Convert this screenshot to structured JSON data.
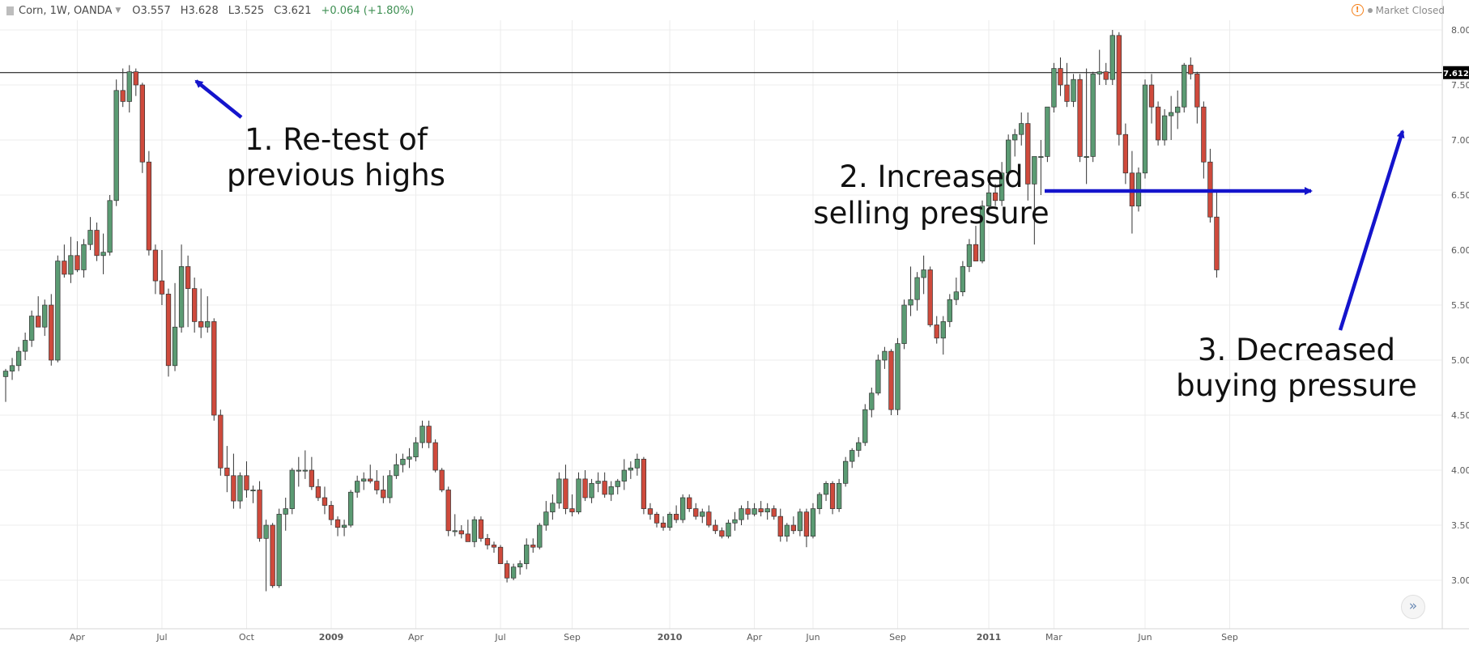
{
  "header": {
    "symbol": "Corn, 1W, OANDA",
    "open": "O3.557",
    "high": "H3.628",
    "low": "L3.525",
    "close": "C3.621",
    "change": "+0.064 (+1.80%)"
  },
  "status": {
    "label": "Market Closed"
  },
  "colors": {
    "up": "#5b9b73",
    "down": "#cf4a3c",
    "arrow": "#1414cc",
    "grid": "#ececec",
    "price_line": "#000000"
  },
  "chart_data": {
    "type": "candlestick",
    "timeframe": "weekly",
    "y_range": [
      2.75,
      8.2
    ],
    "y_ticks": [
      "8.000",
      "7.500",
      "7.000",
      "6.500",
      "6.000",
      "5.500",
      "5.000",
      "4.500",
      "4.000",
      "3.500",
      "3.000"
    ],
    "x_ticks": [
      "Apr",
      "Jul",
      "Oct",
      "2009",
      "Apr",
      "Jul",
      "Sep",
      "2010",
      "Apr",
      "Jun",
      "Sep",
      "2011",
      "Mar",
      "Jun",
      "Sep"
    ],
    "x_tick_weeks": [
      11,
      24,
      37,
      50,
      63,
      76,
      87,
      102,
      115,
      124,
      137,
      151,
      161,
      175,
      188
    ],
    "bold_x_ticks": [
      "2009",
      "2010",
      "2011"
    ],
    "price_line": {
      "value": 7.612,
      "label": "7.612"
    },
    "candles": [
      [
        4.85,
        4.92,
        4.62,
        4.9
      ],
      [
        4.9,
        5.02,
        4.82,
        4.95
      ],
      [
        4.95,
        5.12,
        4.9,
        5.08
      ],
      [
        5.08,
        5.25,
        5.0,
        5.18
      ],
      [
        5.18,
        5.45,
        5.12,
        5.4
      ],
      [
        5.4,
        5.58,
        5.3,
        5.3
      ],
      [
        5.3,
        5.55,
        5.22,
        5.5
      ],
      [
        5.5,
        5.6,
        4.95,
        5.0
      ],
      [
        5.0,
        5.95,
        4.98,
        5.9
      ],
      [
        5.9,
        6.05,
        5.75,
        5.78
      ],
      [
        5.78,
        6.12,
        5.7,
        5.95
      ],
      [
        5.95,
        6.08,
        5.8,
        5.82
      ],
      [
        5.82,
        6.1,
        5.75,
        6.05
      ],
      [
        6.05,
        6.3,
        6.0,
        6.18
      ],
      [
        6.18,
        6.25,
        5.9,
        5.95
      ],
      [
        5.95,
        6.15,
        5.78,
        5.98
      ],
      [
        5.98,
        6.5,
        5.95,
        6.45
      ],
      [
        6.45,
        7.55,
        6.4,
        7.45
      ],
      [
        7.45,
        7.65,
        7.3,
        7.35
      ],
      [
        7.35,
        7.68,
        7.25,
        7.62
      ],
      [
        7.62,
        7.65,
        7.4,
        7.5
      ],
      [
        7.5,
        7.52,
        6.7,
        6.8
      ],
      [
        6.8,
        6.9,
        5.95,
        6.0
      ],
      [
        6.0,
        6.05,
        5.6,
        5.72
      ],
      [
        5.72,
        6.0,
        5.5,
        5.6
      ],
      [
        5.6,
        5.65,
        4.85,
        4.95
      ],
      [
        4.95,
        5.7,
        4.9,
        5.3
      ],
      [
        5.3,
        6.05,
        5.25,
        5.85
      ],
      [
        5.85,
        5.95,
        5.3,
        5.65
      ],
      [
        5.65,
        5.75,
        5.25,
        5.35
      ],
      [
        5.35,
        5.65,
        5.2,
        5.3
      ],
      [
        5.3,
        5.58,
        5.25,
        5.35
      ],
      [
        5.35,
        5.38,
        4.45,
        4.5
      ],
      [
        4.5,
        4.55,
        3.95,
        4.02
      ],
      [
        4.02,
        4.22,
        3.8,
        3.95
      ],
      [
        3.95,
        4.15,
        3.65,
        3.72
      ],
      [
        3.72,
        3.98,
        3.65,
        3.95
      ],
      [
        3.95,
        4.08,
        3.75,
        3.82
      ],
      [
        3.82,
        3.86,
        3.7,
        3.82
      ],
      [
        3.82,
        3.9,
        3.35,
        3.38
      ],
      [
        3.38,
        3.55,
        2.9,
        3.5
      ],
      [
        3.5,
        3.52,
        2.93,
        2.95
      ],
      [
        2.95,
        3.65,
        2.93,
        3.6
      ],
      [
        3.6,
        3.75,
        3.45,
        3.65
      ],
      [
        3.65,
        4.02,
        3.6,
        4.0
      ],
      [
        4.0,
        4.12,
        3.85,
        4.0
      ],
      [
        4.0,
        4.18,
        3.92,
        4.0
      ],
      [
        4.0,
        4.12,
        3.82,
        3.85
      ],
      [
        3.85,
        3.92,
        3.72,
        3.75
      ],
      [
        3.75,
        3.85,
        3.6,
        3.68
      ],
      [
        3.68,
        3.72,
        3.5,
        3.55
      ],
      [
        3.55,
        3.58,
        3.4,
        3.48
      ],
      [
        3.48,
        3.55,
        3.4,
        3.5
      ],
      [
        3.5,
        3.82,
        3.48,
        3.8
      ],
      [
        3.8,
        3.95,
        3.75,
        3.9
      ],
      [
        3.9,
        3.98,
        3.82,
        3.92
      ],
      [
        3.92,
        4.05,
        3.88,
        3.9
      ],
      [
        3.9,
        4.0,
        3.78,
        3.82
      ],
      [
        3.82,
        3.95,
        3.7,
        3.75
      ],
      [
        3.75,
        4.0,
        3.7,
        3.95
      ],
      [
        3.95,
        4.15,
        3.92,
        4.05
      ],
      [
        4.05,
        4.15,
        3.98,
        4.1
      ],
      [
        4.1,
        4.2,
        4.02,
        4.12
      ],
      [
        4.12,
        4.3,
        4.08,
        4.25
      ],
      [
        4.25,
        4.45,
        4.2,
        4.4
      ],
      [
        4.4,
        4.45,
        4.2,
        4.25
      ],
      [
        4.25,
        4.28,
        3.98,
        4.0
      ],
      [
        4.0,
        4.02,
        3.8,
        3.82
      ],
      [
        3.82,
        3.85,
        3.4,
        3.45
      ],
      [
        3.45,
        3.6,
        3.4,
        3.45
      ],
      [
        3.45,
        3.5,
        3.38,
        3.42
      ],
      [
        3.42,
        3.55,
        3.35,
        3.35
      ],
      [
        3.35,
        3.58,
        3.3,
        3.55
      ],
      [
        3.55,
        3.58,
        3.35,
        3.38
      ],
      [
        3.38,
        3.42,
        3.28,
        3.32
      ],
      [
        3.32,
        3.35,
        3.25,
        3.3
      ],
      [
        3.3,
        3.32,
        3.15,
        3.15
      ],
      [
        3.15,
        3.18,
        2.98,
        3.02
      ],
      [
        3.02,
        3.15,
        3.0,
        3.12
      ],
      [
        3.12,
        3.18,
        3.05,
        3.15
      ],
      [
        3.15,
        3.38,
        3.1,
        3.32
      ],
      [
        3.32,
        3.38,
        3.25,
        3.3
      ],
      [
        3.3,
        3.52,
        3.28,
        3.5
      ],
      [
        3.5,
        3.72,
        3.45,
        3.62
      ],
      [
        3.62,
        3.78,
        3.55,
        3.7
      ],
      [
        3.7,
        3.98,
        3.65,
        3.92
      ],
      [
        3.92,
        4.05,
        3.6,
        3.65
      ],
      [
        3.65,
        3.78,
        3.58,
        3.62
      ],
      [
        3.62,
        3.98,
        3.6,
        3.92
      ],
      [
        3.92,
        4.0,
        3.72,
        3.75
      ],
      [
        3.75,
        3.92,
        3.7,
        3.88
      ],
      [
        3.88,
        3.98,
        3.8,
        3.9
      ],
      [
        3.9,
        3.98,
        3.75,
        3.78
      ],
      [
        3.78,
        3.9,
        3.72,
        3.85
      ],
      [
        3.85,
        3.92,
        3.78,
        3.9
      ],
      [
        3.9,
        4.1,
        3.82,
        4.0
      ],
      [
        4.0,
        4.08,
        3.92,
        4.02
      ],
      [
        4.02,
        4.15,
        3.95,
        4.1
      ],
      [
        4.1,
        4.12,
        3.6,
        3.65
      ],
      [
        3.65,
        3.7,
        3.55,
        3.6
      ],
      [
        3.6,
        3.62,
        3.48,
        3.52
      ],
      [
        3.52,
        3.58,
        3.45,
        3.48
      ],
      [
        3.48,
        3.62,
        3.45,
        3.6
      ],
      [
        3.6,
        3.68,
        3.52,
        3.55
      ],
      [
        3.55,
        3.78,
        3.52,
        3.75
      ],
      [
        3.75,
        3.78,
        3.62,
        3.65
      ],
      [
        3.65,
        3.7,
        3.55,
        3.58
      ],
      [
        3.58,
        3.65,
        3.52,
        3.62
      ],
      [
        3.62,
        3.68,
        3.48,
        3.5
      ],
      [
        3.5,
        3.55,
        3.42,
        3.45
      ],
      [
        3.45,
        3.48,
        3.38,
        3.4
      ],
      [
        3.4,
        3.55,
        3.38,
        3.52
      ],
      [
        3.52,
        3.62,
        3.45,
        3.55
      ],
      [
        3.55,
        3.68,
        3.5,
        3.65
      ],
      [
        3.65,
        3.72,
        3.55,
        3.6
      ],
      [
        3.6,
        3.7,
        3.58,
        3.65
      ],
      [
        3.65,
        3.72,
        3.58,
        3.62
      ],
      [
        3.62,
        3.7,
        3.55,
        3.65
      ],
      [
        3.65,
        3.68,
        3.55,
        3.58
      ],
      [
        3.58,
        3.65,
        3.35,
        3.4
      ],
      [
        3.4,
        3.52,
        3.35,
        3.5
      ],
      [
        3.5,
        3.58,
        3.42,
        3.45
      ],
      [
        3.45,
        3.65,
        3.4,
        3.62
      ],
      [
        3.62,
        3.65,
        3.3,
        3.4
      ],
      [
        3.4,
        3.7,
        3.38,
        3.65
      ],
      [
        3.65,
        3.8,
        3.6,
        3.78
      ],
      [
        3.78,
        3.9,
        3.72,
        3.88
      ],
      [
        3.88,
        3.9,
        3.6,
        3.65
      ],
      [
        3.65,
        3.92,
        3.62,
        3.88
      ],
      [
        3.88,
        4.12,
        3.85,
        4.08
      ],
      [
        4.08,
        4.2,
        4.02,
        4.18
      ],
      [
        4.18,
        4.3,
        4.12,
        4.25
      ],
      [
        4.25,
        4.6,
        4.22,
        4.55
      ],
      [
        4.55,
        4.75,
        4.48,
        4.7
      ],
      [
        4.7,
        5.05,
        4.68,
        5.0
      ],
      [
        5.0,
        5.12,
        4.92,
        5.08
      ],
      [
        5.08,
        5.1,
        4.5,
        4.55
      ],
      [
        4.55,
        5.2,
        4.5,
        5.15
      ],
      [
        5.15,
        5.55,
        5.1,
        5.5
      ],
      [
        5.5,
        5.85,
        5.4,
        5.55
      ],
      [
        5.55,
        5.8,
        5.45,
        5.75
      ],
      [
        5.75,
        5.95,
        5.6,
        5.82
      ],
      [
        5.82,
        5.85,
        5.3,
        5.32
      ],
      [
        5.32,
        5.4,
        5.15,
        5.2
      ],
      [
        5.2,
        5.4,
        5.05,
        5.35
      ],
      [
        5.35,
        5.6,
        5.3,
        5.55
      ],
      [
        5.55,
        5.75,
        5.5,
        5.62
      ],
      [
        5.62,
        5.9,
        5.58,
        5.85
      ],
      [
        5.85,
        6.1,
        5.8,
        6.05
      ],
      [
        6.05,
        6.22,
        5.9,
        5.9
      ],
      [
        5.9,
        6.45,
        5.88,
        6.4
      ],
      [
        6.4,
        6.6,
        6.35,
        6.52
      ],
      [
        6.52,
        6.6,
        6.4,
        6.45
      ],
      [
        6.45,
        6.8,
        6.4,
        6.7
      ],
      [
        6.7,
        7.05,
        6.65,
        7.0
      ],
      [
        7.0,
        7.1,
        6.85,
        7.05
      ],
      [
        7.05,
        7.25,
        6.95,
        7.15
      ],
      [
        7.15,
        7.25,
        6.45,
        6.6
      ],
      [
        6.6,
        6.8,
        6.05,
        6.85
      ],
      [
        6.85,
        7.0,
        6.5,
        6.85
      ],
      [
        6.85,
        7.3,
        6.8,
        7.3
      ],
      [
        7.3,
        7.7,
        7.25,
        7.65
      ],
      [
        7.65,
        7.75,
        7.4,
        7.5
      ],
      [
        7.5,
        7.7,
        7.3,
        7.35
      ],
      [
        7.35,
        7.6,
        7.3,
        7.55
      ],
      [
        7.55,
        7.6,
        6.8,
        6.85
      ],
      [
        6.85,
        7.65,
        6.6,
        6.85
      ],
      [
        6.85,
        7.62,
        6.8,
        7.6
      ],
      [
        7.6,
        7.82,
        7.5,
        7.62
      ],
      [
        7.62,
        7.7,
        7.5,
        7.55
      ],
      [
        7.55,
        8.0,
        7.5,
        7.95
      ],
      [
        7.95,
        7.98,
        6.95,
        7.05
      ],
      [
        7.05,
        7.15,
        6.6,
        6.7
      ],
      [
        6.7,
        6.9,
        6.15,
        6.4
      ],
      [
        6.4,
        6.75,
        6.35,
        6.7
      ],
      [
        6.7,
        7.55,
        6.65,
        7.5
      ],
      [
        7.5,
        7.6,
        7.15,
        7.3
      ],
      [
        7.3,
        7.35,
        6.95,
        7.0
      ],
      [
        7.0,
        7.28,
        6.95,
        7.22
      ],
      [
        7.22,
        7.4,
        7.0,
        7.25
      ],
      [
        7.25,
        7.45,
        7.1,
        7.3
      ],
      [
        7.3,
        7.7,
        7.25,
        7.68
      ],
      [
        7.68,
        7.75,
        7.55,
        7.6
      ],
      [
        7.6,
        7.62,
        7.15,
        7.3
      ],
      [
        7.3,
        7.35,
        6.65,
        6.8
      ],
      [
        6.8,
        6.92,
        6.25,
        6.3
      ],
      [
        6.3,
        6.55,
        5.75,
        5.82
      ]
    ]
  },
  "annotations": {
    "a1_line1": "1. Re-test of",
    "a1_line2": "previous highs",
    "a2_line1": "2. Increased",
    "a2_line2": "selling pressure",
    "a3_line1": "3. Decreased",
    "a3_line2": "buying pressure"
  },
  "controls": {
    "scroll_icon": "double-chevron-right-icon"
  }
}
